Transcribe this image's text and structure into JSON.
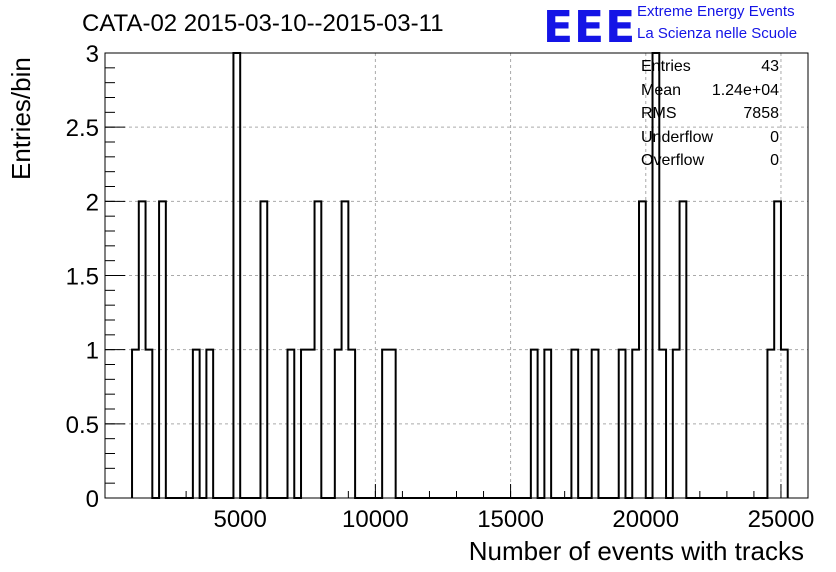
{
  "title": "CATA-02 2015-03-10--2015-03-11",
  "logo": {
    "letters": "EEE",
    "line1": "Extreme Energy Events",
    "line2": "La Scienza nelle Scuole"
  },
  "stats": [
    {
      "name": "Entries",
      "value": "43"
    },
    {
      "name": "Mean",
      "value": "1.24e+04"
    },
    {
      "name": "RMS",
      "value": "7858"
    },
    {
      "name": "Underflow",
      "value": "0"
    },
    {
      "name": "Overflow",
      "value": "0"
    }
  ],
  "chart_data": {
    "type": "histogram",
    "title": "CATA-02 2015-03-10--2015-03-11",
    "xlabel": "Number of events with tracks",
    "ylabel": "Entries/bin",
    "xlim": [
      0,
      26000
    ],
    "ylim": [
      0,
      3
    ],
    "x_ticks": [
      "5000",
      "10000",
      "15000",
      "20000",
      "25000"
    ],
    "y_ticks": [
      "0",
      "0.5",
      "1",
      "1.5",
      "2",
      "2.5",
      "3"
    ],
    "grid": true,
    "legend": "none",
    "bins": [
      {
        "x0": 1000,
        "x1": 1250,
        "y": 1
      },
      {
        "x0": 1250,
        "x1": 1500,
        "y": 2
      },
      {
        "x0": 1500,
        "x1": 1750,
        "y": 1
      },
      {
        "x0": 2000,
        "x1": 2250,
        "y": 2
      },
      {
        "x0": 3250,
        "x1": 3500,
        "y": 1
      },
      {
        "x0": 3750,
        "x1": 4000,
        "y": 1
      },
      {
        "x0": 4750,
        "x1": 5000,
        "y": 3
      },
      {
        "x0": 5750,
        "x1": 6000,
        "y": 2
      },
      {
        "x0": 6750,
        "x1": 7000,
        "y": 1
      },
      {
        "x0": 7250,
        "x1": 7500,
        "y": 1
      },
      {
        "x0": 7500,
        "x1": 7750,
        "y": 1
      },
      {
        "x0": 7750,
        "x1": 8000,
        "y": 2
      },
      {
        "x0": 8500,
        "x1": 8750,
        "y": 1
      },
      {
        "x0": 8750,
        "x1": 9000,
        "y": 2
      },
      {
        "x0": 9000,
        "x1": 9250,
        "y": 1
      },
      {
        "x0": 10250,
        "x1": 10500,
        "y": 1
      },
      {
        "x0": 10500,
        "x1": 10750,
        "y": 1
      },
      {
        "x0": 15750,
        "x1": 16000,
        "y": 1
      },
      {
        "x0": 16250,
        "x1": 16500,
        "y": 1
      },
      {
        "x0": 17250,
        "x1": 17500,
        "y": 1
      },
      {
        "x0": 18000,
        "x1": 18250,
        "y": 1
      },
      {
        "x0": 19000,
        "x1": 19250,
        "y": 1
      },
      {
        "x0": 19500,
        "x1": 19750,
        "y": 1
      },
      {
        "x0": 19750,
        "x1": 20000,
        "y": 2
      },
      {
        "x0": 20250,
        "x1": 20500,
        "y": 3
      },
      {
        "x0": 20500,
        "x1": 20750,
        "y": 1
      },
      {
        "x0": 21000,
        "x1": 21250,
        "y": 1
      },
      {
        "x0": 21250,
        "x1": 21500,
        "y": 2
      },
      {
        "x0": 24500,
        "x1": 24750,
        "y": 1
      },
      {
        "x0": 24750,
        "x1": 25000,
        "y": 2
      },
      {
        "x0": 25000,
        "x1": 25250,
        "y": 1
      }
    ]
  }
}
